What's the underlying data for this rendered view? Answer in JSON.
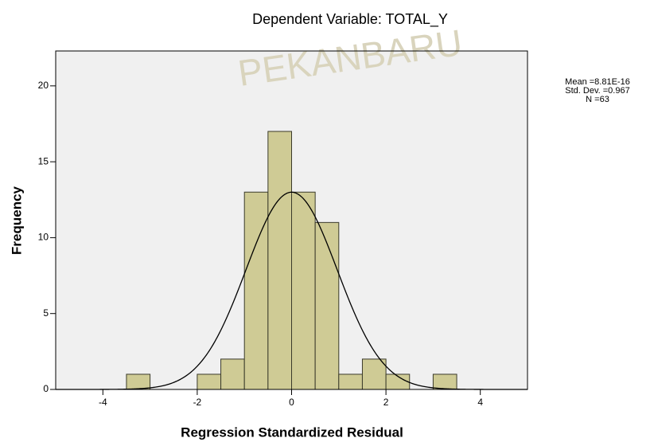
{
  "chart_data": {
    "type": "histogram",
    "title": "Dependent Variable: TOTAL_Y",
    "watermark": "PEKANBARU",
    "x_label": "Regression Standardized Residual",
    "y_label": "Frequency",
    "bins": [
      -3.5,
      -3,
      -2.5,
      -2,
      -1.5,
      -1,
      -0.5,
      0,
      0.5,
      1,
      1.5,
      2,
      2.5,
      3,
      3.5
    ],
    "values": [
      1,
      0,
      0,
      1,
      2,
      13,
      17,
      13,
      11,
      1,
      2,
      1,
      0,
      1
    ],
    "color": "#cfcb95",
    "edge_color": "#3a3a2a",
    "curve_color": "#000000",
    "xlim": [
      -5,
      5
    ],
    "xticks": [
      -4,
      -2,
      0,
      2,
      4
    ],
    "ylim": [
      0,
      22.3
    ],
    "yticks": [
      0,
      5,
      10,
      15,
      20
    ],
    "stats": [
      {
        "value": 8.81e-16,
        "label": "Mean =8.81E-16"
      },
      {
        "value": 0.967,
        "label": "Std. Dev. =0.967"
      },
      {
        "value": 63,
        "label": "N =63"
      }
    ]
  }
}
